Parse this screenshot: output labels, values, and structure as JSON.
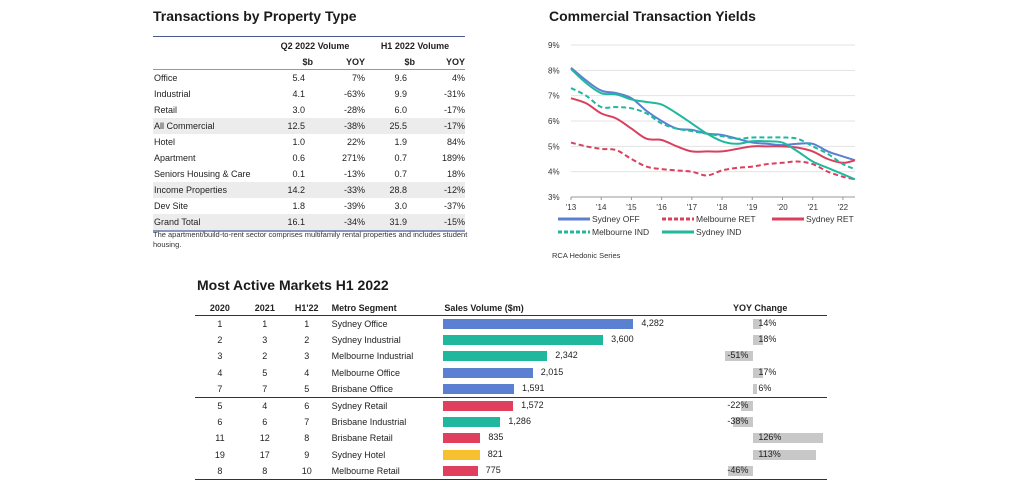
{
  "property_table": {
    "title": "Transactions by Property Type",
    "group_headers": [
      "Q2 2022 Volume",
      "H1 2022 Volume"
    ],
    "sub_headers": [
      "$b",
      "YOY",
      "$b",
      "YOY"
    ],
    "rows": [
      {
        "label": "Office",
        "q2_vol": "5.4",
        "q2_yoy": "7%",
        "h1_vol": "9.6",
        "h1_yoy": "4%",
        "shaded": false
      },
      {
        "label": "Industrial",
        "q2_vol": "4.1",
        "q2_yoy": "-63%",
        "h1_vol": "9.9",
        "h1_yoy": "-31%",
        "shaded": false
      },
      {
        "label": "Retail",
        "q2_vol": "3.0",
        "q2_yoy": "-28%",
        "h1_vol": "6.0",
        "h1_yoy": "-17%",
        "shaded": false
      },
      {
        "label": "All Commercial",
        "q2_vol": "12.5",
        "q2_yoy": "-38%",
        "h1_vol": "25.5",
        "h1_yoy": "-17%",
        "shaded": true
      },
      {
        "label": "Hotel",
        "q2_vol": "1.0",
        "q2_yoy": "22%",
        "h1_vol": "1.9",
        "h1_yoy": "84%",
        "shaded": false
      },
      {
        "label": "Apartment",
        "q2_vol": "0.6",
        "q2_yoy": "271%",
        "h1_vol": "0.7",
        "h1_yoy": "189%",
        "shaded": false
      },
      {
        "label": "Seniors Housing & Care",
        "q2_vol": "0.1",
        "q2_yoy": "-13%",
        "h1_vol": "0.7",
        "h1_yoy": "18%",
        "shaded": false
      },
      {
        "label": "Income Properties",
        "q2_vol": "14.2",
        "q2_yoy": "-33%",
        "h1_vol": "28.8",
        "h1_yoy": "-12%",
        "shaded": true
      },
      {
        "label": "Dev Site",
        "q2_vol": "1.8",
        "q2_yoy": "-39%",
        "h1_vol": "3.0",
        "h1_yoy": "-37%",
        "shaded": false
      },
      {
        "label": "Grand Total",
        "q2_vol": "16.1",
        "q2_yoy": "-34%",
        "h1_vol": "31.9",
        "h1_yoy": "-15%",
        "shaded": true
      }
    ],
    "note": "The apartment/build-to-rent sector comprises multifamily rental properties and includes student housing."
  },
  "chart_data": {
    "type": "line",
    "title": "Commercial Transaction Yields",
    "xlabel": "",
    "ylabel": "",
    "x_tick_labels": [
      "'13",
      "'14",
      "'15",
      "'16",
      "'17",
      "'18",
      "'19",
      "'20",
      "'21",
      "'22"
    ],
    "x": [
      2013.0,
      2013.5,
      2014.0,
      2014.5,
      2015.0,
      2015.5,
      2016.0,
      2016.5,
      2017.0,
      2017.5,
      2018.0,
      2018.5,
      2019.0,
      2019.5,
      2020.0,
      2020.5,
      2021.0,
      2021.5,
      2022.0,
      2022.4
    ],
    "xlim": [
      2013,
      2022.4
    ],
    "ylim": [
      3,
      9
    ],
    "y_ticks": [
      3,
      4,
      5,
      6,
      7,
      8,
      9
    ],
    "y_tick_format": "%",
    "grid": true,
    "legend_position": "bottom",
    "series": [
      {
        "name": "Sydney OFF",
        "color": "#5b7fd1",
        "dashed": false,
        "values": [
          8.1,
          7.6,
          7.2,
          7.1,
          6.9,
          6.4,
          6.0,
          5.7,
          5.65,
          5.5,
          5.45,
          5.3,
          5.15,
          5.1,
          5.05,
          5.1,
          5.1,
          4.8,
          4.6,
          4.45
        ]
      },
      {
        "name": "Melbourne RET",
        "color": "#d9405e",
        "dashed": true,
        "values": [
          5.15,
          5.0,
          4.9,
          4.85,
          4.5,
          4.2,
          4.1,
          4.05,
          4.0,
          3.85,
          4.05,
          4.15,
          4.2,
          4.3,
          4.35,
          4.4,
          4.3,
          4.0,
          3.8,
          3.7
        ]
      },
      {
        "name": "Sydney RET",
        "color": "#d9405e",
        "dashed": false,
        "values": [
          6.9,
          6.7,
          6.3,
          6.1,
          5.7,
          5.3,
          5.25,
          5.0,
          4.8,
          4.8,
          4.8,
          4.9,
          5.0,
          5.0,
          5.0,
          4.95,
          4.8,
          4.5,
          4.35,
          4.45
        ]
      },
      {
        "name": "Melbourne IND",
        "color": "#1fb89f",
        "dashed": true,
        "values": [
          7.3,
          7.0,
          6.55,
          6.55,
          6.5,
          6.3,
          5.9,
          5.7,
          5.6,
          5.5,
          5.4,
          5.3,
          5.35,
          5.35,
          5.35,
          5.3,
          5.0,
          4.7,
          4.3,
          4.1
        ]
      },
      {
        "name": "Sydney IND",
        "color": "#1fb89f",
        "dashed": false,
        "values": [
          8.05,
          7.5,
          7.1,
          7.05,
          6.85,
          6.75,
          6.65,
          6.3,
          5.9,
          5.5,
          5.2,
          5.1,
          5.2,
          5.2,
          5.15,
          4.8,
          4.4,
          4.15,
          3.9,
          3.7
        ]
      }
    ],
    "source": "RCA Hedonic Series"
  },
  "markets": {
    "title": "Most Active Markets H1 2022",
    "headers": {
      "y2020": "2020",
      "y2021": "2021",
      "h122": "H1'22",
      "segment": "Metro Segment",
      "volume": "Sales Volume ($m)",
      "yoy": "YOY Change"
    },
    "volume_max": 4282,
    "yoy_scale_max": 126,
    "colors": {
      "Office": "#5b7fd1",
      "Industrial": "#1fb89f",
      "Retail": "#e0405e",
      "Hotel": "#f7c02e",
      "yoy": "#c8c8c8"
    },
    "rows": [
      {
        "r2020": "1",
        "r2021": "1",
        "h122": "1",
        "segment": "Sydney Office",
        "type": "Office",
        "volume": 4282,
        "volume_label": "4,282",
        "yoy": 14,
        "yoy_label": "14%"
      },
      {
        "r2020": "2",
        "r2021": "3",
        "h122": "2",
        "segment": "Sydney Industrial",
        "type": "Industrial",
        "volume": 3600,
        "volume_label": "3,600",
        "yoy": 18,
        "yoy_label": "18%"
      },
      {
        "r2020": "3",
        "r2021": "2",
        "h122": "3",
        "segment": "Melbourne Industrial",
        "type": "Industrial",
        "volume": 2342,
        "volume_label": "2,342",
        "yoy": -51,
        "yoy_label": "-51%"
      },
      {
        "r2020": "4",
        "r2021": "5",
        "h122": "4",
        "segment": "Melbourne Office",
        "type": "Office",
        "volume": 2015,
        "volume_label": "2,015",
        "yoy": 17,
        "yoy_label": "17%"
      },
      {
        "r2020": "7",
        "r2021": "7",
        "h122": "5",
        "segment": "Brisbane Office",
        "type": "Office",
        "volume": 1591,
        "volume_label": "1,591",
        "yoy": 6,
        "yoy_label": "6%"
      },
      {
        "r2020": "5",
        "r2021": "4",
        "h122": "6",
        "segment": "Sydney Retail",
        "type": "Retail",
        "volume": 1572,
        "volume_label": "1,572",
        "yoy": -22,
        "yoy_label": "-22%"
      },
      {
        "r2020": "6",
        "r2021": "6",
        "h122": "7",
        "segment": "Brisbane Industrial",
        "type": "Industrial",
        "volume": 1286,
        "volume_label": "1,286",
        "yoy": -38,
        "yoy_label": "-38%"
      },
      {
        "r2020": "11",
        "r2021": "12",
        "h122": "8",
        "segment": "Brisbane Retail",
        "type": "Retail",
        "volume": 835,
        "volume_label": "835",
        "yoy": 126,
        "yoy_label": "126%"
      },
      {
        "r2020": "19",
        "r2021": "17",
        "h122": "9",
        "segment": "Sydney Hotel",
        "type": "Hotel",
        "volume": 821,
        "volume_label": "821",
        "yoy": 113,
        "yoy_label": "113%"
      },
      {
        "r2020": "8",
        "r2021": "8",
        "h122": "10",
        "segment": "Melbourne Retail",
        "type": "Retail",
        "volume": 775,
        "volume_label": "775",
        "yoy": -46,
        "yoy_label": "-46%"
      }
    ]
  }
}
